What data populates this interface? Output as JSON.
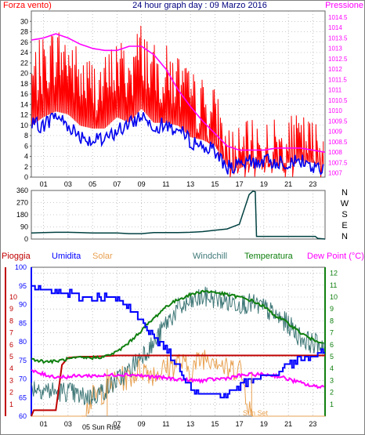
{
  "header": {
    "left": "Forza vento)",
    "title": "24 hour graph day : 09 Marzo 2016",
    "right": "Pressione"
  },
  "colors": {
    "wind_gust": "#ff0000",
    "wind_avg": "#0000ee",
    "pressure": "#ff00ff",
    "direction": "#004040",
    "humidity": "#0000ff",
    "solar": "#e8a050",
    "windchill": "#407878",
    "temperature": "#108010",
    "dewpoint": "#ff00ff",
    "rain": "#c00000",
    "title": "#000080"
  },
  "bottom_legend": {
    "rain": "Pioggia",
    "humidity": "Umidita",
    "solar": "Solar",
    "windchill": "Windchill",
    "temperature": "Temperatura",
    "dewpoint": "Dew Point (°C)"
  },
  "annotations": {
    "sunrise": "05 Sun Rise",
    "sunset": "Sun Set"
  },
  "chart_data": [
    {
      "type": "line",
      "name": "wind-pressure",
      "x_ticks": [
        "01",
        "03",
        "05",
        "07",
        "09",
        "11",
        "13",
        "15",
        "17",
        "19",
        "21",
        "23"
      ],
      "xlim": [
        0,
        24
      ],
      "ylim_left": [
        0,
        32
      ],
      "y_ticks_left": [
        "0",
        "2",
        "4",
        "6",
        "8",
        "10",
        "12",
        "14",
        "16",
        "18",
        "20",
        "22",
        "24",
        "26",
        "28",
        "30"
      ],
      "ylim_right": [
        1006.8,
        1014.8
      ],
      "y_ticks_right": [
        "1007",
        "1007.5",
        "1008",
        "1008.5",
        "1009",
        "1009.5",
        "1010",
        "1010.5",
        "1011",
        "1011.5",
        "1012",
        "1012.5",
        "1013",
        "1013.5",
        "1014",
        "1014.5"
      ],
      "series": [
        {
          "key": "gust",
          "x": [
            0,
            1,
            2,
            3,
            4,
            5,
            6,
            7,
            8,
            9,
            10,
            11,
            12,
            13,
            14,
            15,
            16,
            17,
            18,
            19,
            20,
            21,
            22,
            23,
            24
          ],
          "values": [
            18,
            21,
            23,
            22,
            18,
            17,
            17,
            21,
            19,
            24,
            19,
            19,
            18,
            14,
            13,
            11,
            4,
            3,
            5,
            5,
            5,
            5,
            6,
            5,
            4
          ]
        },
        {
          "key": "average",
          "x": [
            0,
            1,
            2,
            3,
            4,
            5,
            6,
            7,
            8,
            9,
            10,
            11,
            12,
            13,
            14,
            15,
            16,
            17,
            18,
            19,
            20,
            21,
            22,
            23,
            24
          ],
          "values": [
            10,
            10,
            12,
            10,
            8,
            7,
            7,
            9,
            10,
            12,
            10,
            10,
            9,
            7,
            6,
            5,
            2,
            2,
            3,
            3,
            3,
            3,
            3,
            2,
            1
          ]
        },
        {
          "key": "pressure",
          "x": [
            0,
            1,
            2,
            3,
            4,
            5,
            6,
            7,
            8,
            9,
            10,
            11,
            12,
            13,
            14,
            15,
            16,
            17,
            18,
            19,
            20,
            21,
            22,
            23,
            24
          ],
          "values": [
            1013.4,
            1013.5,
            1013.7,
            1013.5,
            1013.2,
            1013.0,
            1012.9,
            1012.9,
            1013.1,
            1013.1,
            1012.7,
            1012.0,
            1011.0,
            1010.2,
            1009.5,
            1008.9,
            1008.3,
            1008.1,
            1008.1,
            1008.1,
            1008.2,
            1008.2,
            1008.2,
            1008.1,
            1008.0
          ]
        }
      ]
    },
    {
      "type": "line",
      "name": "wind-direction",
      "xlim": [
        0,
        24
      ],
      "ylim": [
        0,
        360
      ],
      "y_ticks": [
        "0",
        "90",
        "180",
        "270",
        "360"
      ],
      "direction_labels": [
        "N",
        "W",
        "S",
        "E",
        "N"
      ],
      "series": [
        {
          "key": "direction",
          "x": [
            0,
            1,
            2,
            3,
            4,
            5,
            6,
            7,
            8,
            9,
            10,
            11,
            12,
            13,
            14,
            15,
            16,
            17,
            17.8,
            18.1,
            18.3,
            18.4,
            23.2,
            23.4,
            24
          ],
          "values": [
            45,
            48,
            50,
            50,
            48,
            45,
            45,
            45,
            40,
            40,
            48,
            48,
            48,
            50,
            55,
            65,
            75,
            110,
            330,
            355,
            350,
            20,
            20,
            5,
            0
          ]
        }
      ]
    },
    {
      "type": "line",
      "name": "temp-humidity",
      "xlim": [
        0,
        24
      ],
      "ylim_left": [
        60,
        100
      ],
      "y_ticks_left": [
        "60",
        "65",
        "70",
        "75",
        "80",
        "85",
        "90",
        "95",
        "100"
      ],
      "ylim_right": [
        0,
        12.5
      ],
      "y_ticks_right": [
        "1",
        "2",
        "3",
        "4",
        "5",
        "6",
        "7",
        "8",
        "9",
        "10",
        "11",
        "12"
      ],
      "series": [
        {
          "key": "humidity",
          "x": [
            0,
            1,
            2,
            3,
            4,
            5,
            6,
            7,
            8,
            9,
            10,
            11,
            12,
            13,
            14,
            15,
            16,
            17,
            18,
            19,
            20,
            21,
            22,
            23,
            24
          ],
          "values": [
            94,
            94,
            93,
            93,
            92,
            92,
            92,
            91,
            89,
            86,
            81,
            78,
            73,
            68,
            66,
            66,
            66,
            68,
            70,
            71,
            71,
            74,
            75,
            76,
            77
          ]
        },
        {
          "key": "temperature",
          "x": [
            0,
            1,
            2,
            3,
            4,
            5,
            6,
            7,
            8,
            9,
            10,
            11,
            12,
            13,
            14,
            15,
            16,
            17,
            18,
            19,
            20,
            21,
            22,
            23,
            24
          ],
          "values": [
            4.8,
            4.6,
            4.6,
            4.8,
            4.9,
            4.9,
            5.0,
            5.4,
            6.2,
            7.2,
            8.2,
            9.2,
            9.8,
            10.2,
            10.5,
            10.4,
            10.2,
            10.0,
            9.7,
            9.2,
            8.4,
            7.8,
            7.0,
            6.4,
            6.2
          ]
        },
        {
          "key": "dewpoint",
          "x": [
            0,
            1,
            2,
            3,
            4,
            5,
            6,
            7,
            8,
            9,
            10,
            11,
            12,
            13,
            14,
            15,
            16,
            17,
            18,
            19,
            20,
            21,
            22,
            23,
            24
          ],
          "values": [
            3.8,
            3.5,
            3.3,
            3.3,
            3.4,
            3.4,
            3.4,
            3.5,
            3.5,
            3.4,
            3.3,
            3.2,
            3.1,
            3.0,
            3.0,
            3.1,
            3.2,
            3.4,
            3.5,
            3.5,
            3.4,
            3.1,
            2.8,
            2.5,
            2.5
          ]
        },
        {
          "key": "windchill",
          "x": [
            0,
            1,
            2,
            3,
            4,
            5,
            6,
            7,
            8,
            9,
            10,
            11,
            12,
            13,
            14,
            15,
            16,
            17,
            18,
            19,
            20,
            21,
            22,
            23,
            24
          ],
          "values": [
            2.5,
            2.3,
            2.0,
            2.1,
            1.6,
            1.7,
            2.2,
            3.0,
            3.8,
            5.2,
            6.0,
            7.8,
            9.0,
            9.5,
            10.0,
            9.9,
            9.6,
            9.5,
            9.4,
            9.1,
            8.4,
            7.7,
            6.6,
            6.1,
            6.0
          ]
        },
        {
          "key": "solar",
          "x": [
            0,
            4,
            5,
            6,
            7,
            8,
            9,
            10,
            11,
            12,
            13,
            14,
            15,
            16,
            17,
            18,
            19,
            24
          ],
          "values": [
            0,
            0,
            1.5,
            2.2,
            3.0,
            3.3,
            4.0,
            3.6,
            4.0,
            4.6,
            3.8,
            5.0,
            5.0,
            3.8,
            4.2,
            0,
            0,
            0
          ]
        },
        {
          "key": "rain",
          "x": [
            0,
            0.2,
            0.3,
            2,
            2.5,
            3,
            4,
            5,
            7,
            8,
            9,
            10,
            11,
            12,
            13,
            14,
            15,
            16,
            17,
            18,
            19,
            20,
            21,
            22,
            23,
            24
          ],
          "values": [
            0,
            0.5,
            0.5,
            0.5,
            4.3,
            4.9,
            5.0,
            5.0,
            5.1,
            5.1,
            5.1,
            5.1,
            5.1,
            5.1,
            5.1,
            5.1,
            5.1,
            5.1,
            5.1,
            5.1,
            5.1,
            5.1,
            5.1,
            5.1,
            5.1,
            5.1
          ]
        }
      ]
    }
  ]
}
